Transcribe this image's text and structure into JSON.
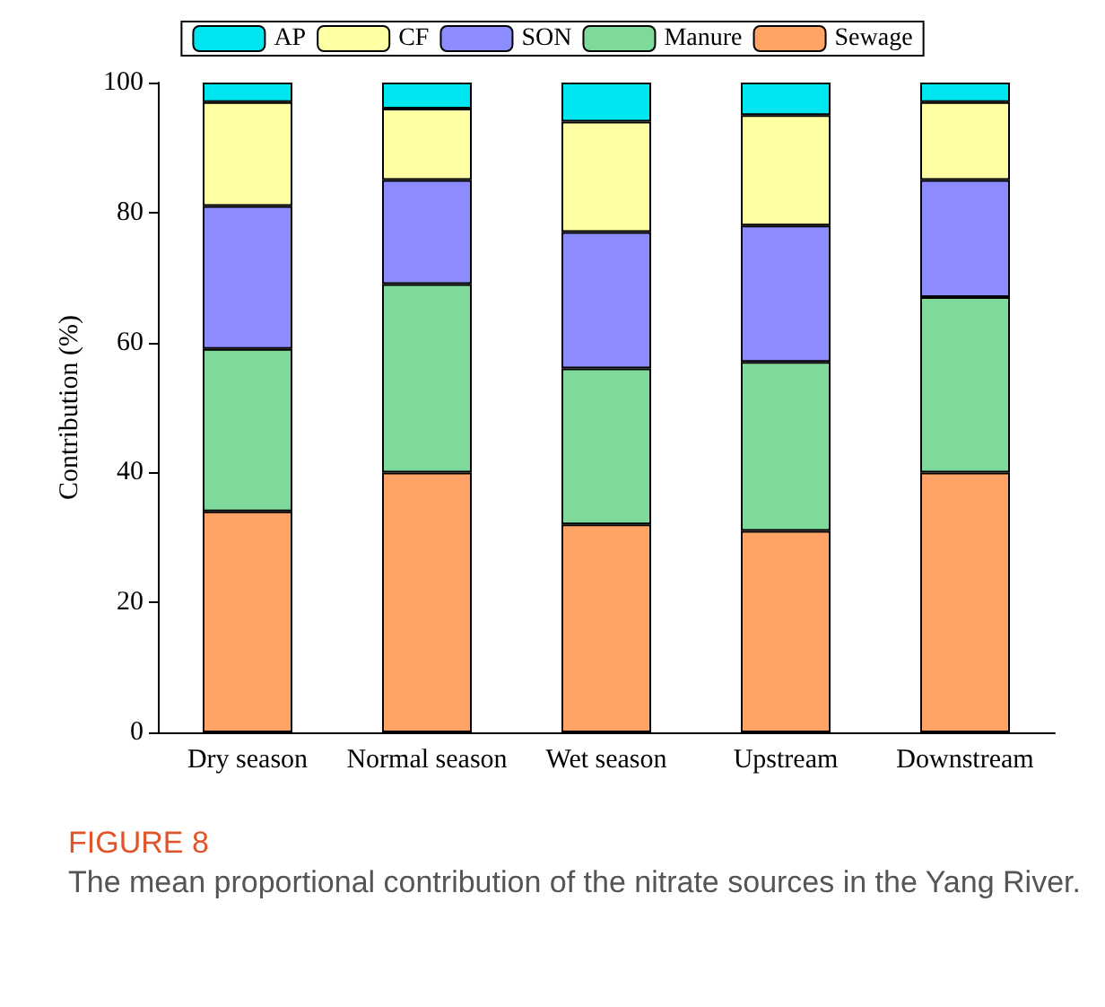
{
  "chart_data": {
    "type": "bar",
    "title": "FIGURE 8",
    "subtitle": "The mean proportional contribution of the nitrate sources in the Yang River.",
    "ylabel": "Contribution (%)",
    "categories": [
      "Dry season",
      "Normal season",
      "Wet season",
      "Upstream",
      "Downstream"
    ],
    "stacked": true,
    "series": [
      {
        "name": "Sewage",
        "color": "#ffa366",
        "values": [
          34,
          40,
          32,
          31,
          40
        ]
      },
      {
        "name": "Manure",
        "color": "#7fd99a",
        "values": [
          25,
          29,
          24,
          26,
          27
        ]
      },
      {
        "name": "SON",
        "color": "#8c8cff",
        "values": [
          22,
          16,
          21,
          21,
          18
        ]
      },
      {
        "name": "CF",
        "color": "#ffffa3",
        "values": [
          16,
          11,
          17,
          17,
          12
        ]
      },
      {
        "name": "AP",
        "color": "#00e6f0",
        "values": [
          3,
          4,
          6,
          5,
          3
        ]
      }
    ],
    "ylim": [
      0,
      100
    ],
    "yticks": [
      0,
      20,
      40,
      60,
      80,
      100
    ],
    "grid": false,
    "legend": "top"
  }
}
